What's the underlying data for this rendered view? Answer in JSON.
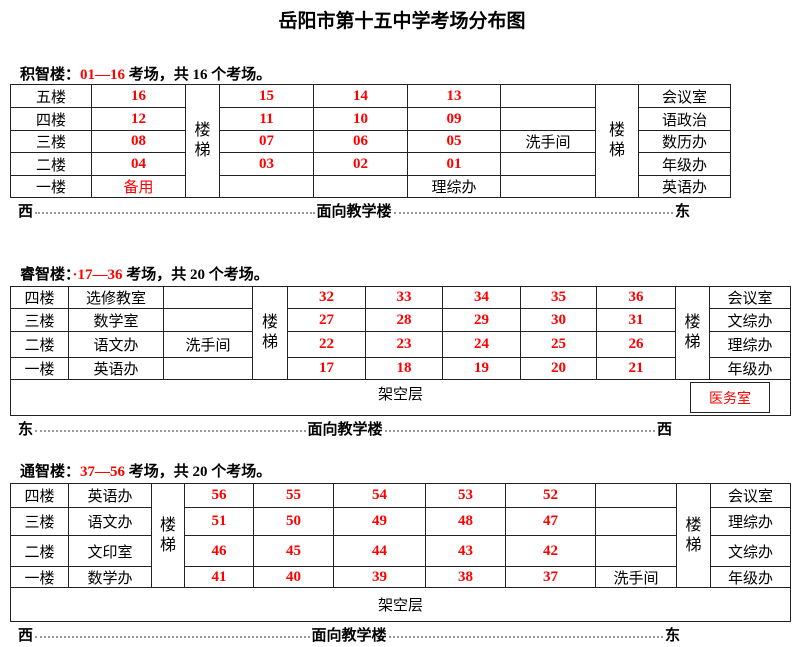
{
  "title": "岳阳市第十五中学考场分布图",
  "stair_label": "楼梯",
  "pilotis_label": "架空层",
  "facing_label": "面向教学楼",
  "room_color": "#ff0000",
  "buildings": [
    {
      "name": "积智楼：",
      "range": "01—16",
      "summary": " 考场，共 16 个考场。",
      "west_label": "西",
      "east_label": "东",
      "red_labels": [
        "备用"
      ],
      "rows": [
        [
          "五楼",
          "16",
          "15",
          "14",
          "13",
          "",
          "会议室"
        ],
        [
          "四楼",
          "12",
          "11",
          "10",
          "09",
          "",
          "语政治"
        ],
        [
          "三楼",
          "08",
          "07",
          "06",
          "05",
          "洗手间",
          "数历办"
        ],
        [
          "二楼",
          "04",
          "03",
          "02",
          "01",
          "",
          "年级办"
        ],
        [
          "一楼",
          "备用",
          "",
          "",
          "理综办",
          "",
          "英语办"
        ]
      ]
    },
    {
      "name": "睿智楼：",
      "range": "·17—36",
      "summary": " 考场，共 20 个考场。",
      "west_label": "东",
      "east_label": "西",
      "clinic_label": "医务室",
      "rows": [
        [
          "四楼",
          "选修教室",
          "",
          "32",
          "33",
          "34",
          "35",
          "36",
          "会议室"
        ],
        [
          "三楼",
          "数学室",
          "",
          "27",
          "28",
          "29",
          "30",
          "31",
          "文综办"
        ],
        [
          "二楼",
          "语文办",
          "洗手间",
          "22",
          "23",
          "24",
          "25",
          "26",
          "理综办"
        ],
        [
          "一楼",
          "英语办",
          "",
          "17",
          "18",
          "19",
          "20",
          "21",
          "年级办"
        ]
      ]
    },
    {
      "name": "通智楼：",
      "range": "37—56",
      "summary": " 考场，共 20 个考场。",
      "west_label": "西",
      "east_label": "东",
      "rows": [
        [
          "四楼",
          "英语办",
          "56",
          "55",
          "54",
          "53",
          "52",
          "",
          "会议室"
        ],
        [
          "三楼",
          "语文办",
          "51",
          "50",
          "49",
          "48",
          "47",
          "",
          "理综办"
        ],
        [
          "二楼",
          "文印室",
          "46",
          "45",
          "44",
          "43",
          "42",
          "",
          "文综办"
        ],
        [
          "一楼",
          "数学办",
          "41",
          "40",
          "39",
          "38",
          "37",
          "洗手间",
          "年级办"
        ]
      ]
    }
  ]
}
